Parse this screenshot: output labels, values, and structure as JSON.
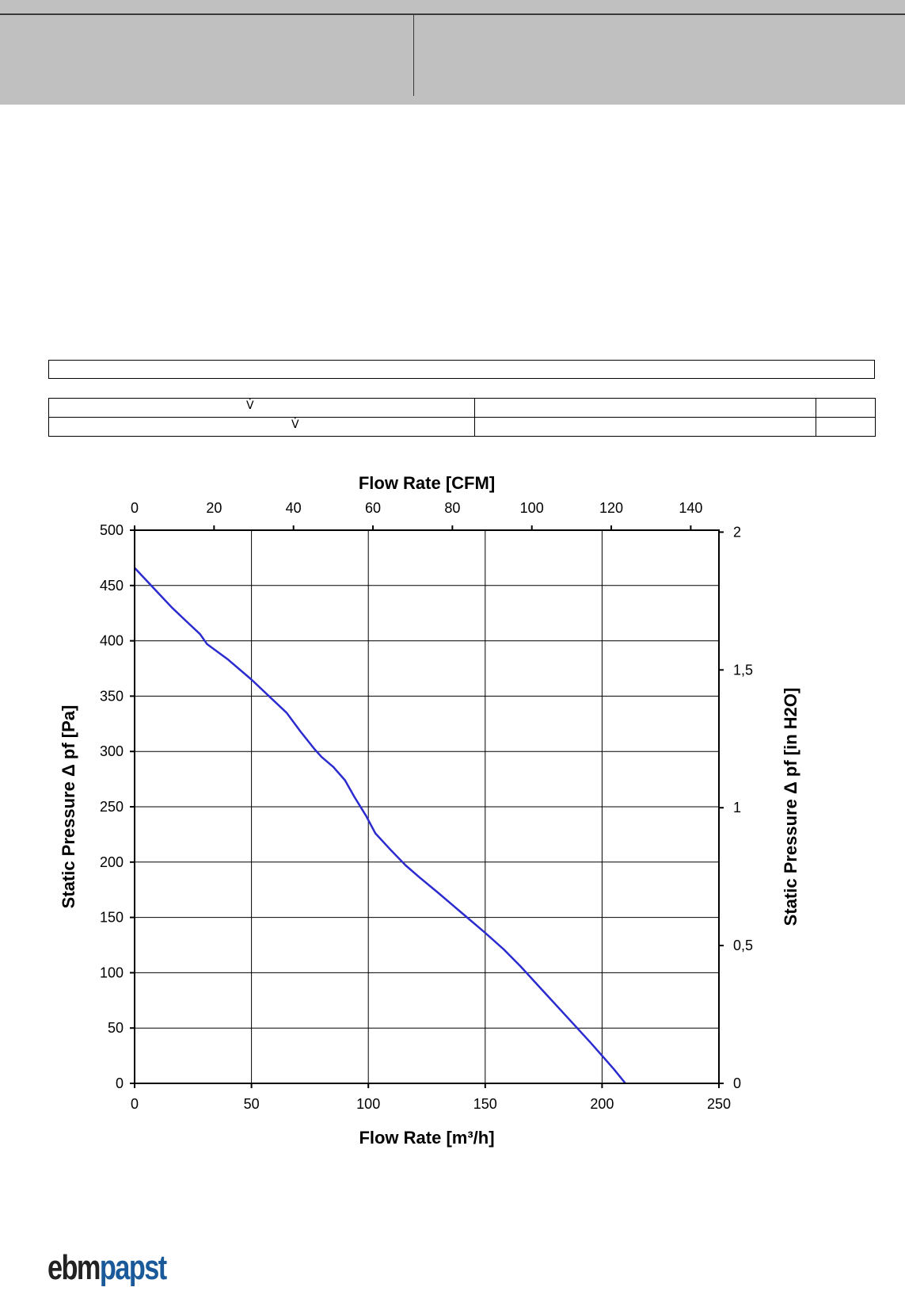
{
  "colors": {
    "header": "#c0c0c0",
    "curve": "#2b2bd0",
    "logo_dark": "#222222",
    "logo_blue": "#1a5a9a"
  },
  "table": {
    "row1_symbol": "V̇",
    "row2_symbol": "V̇"
  },
  "logo": {
    "ebm": "ebm",
    "papst": "papst"
  },
  "chart_data": {
    "type": "line",
    "xlabel": "Flow Rate [m³/h]",
    "x2label": "Flow Rate [CFM]",
    "ylabel": "Static Pressure Δ pf [Pa]",
    "y2label": "Static Pressure Δ pf [in H2O]",
    "xlim": [
      0,
      250
    ],
    "ylim": [
      0,
      500
    ],
    "x_ticks": [
      0,
      50,
      100,
      150,
      200,
      250
    ],
    "y_ticks": [
      0,
      50,
      100,
      150,
      200,
      250,
      300,
      350,
      400,
      450,
      500
    ],
    "x2lim": [
      0,
      147.1
    ],
    "x2_ticks": [
      "0",
      "20",
      "40",
      "60",
      "80",
      "100",
      "120",
      "140"
    ],
    "y2lim": [
      0,
      2.007
    ],
    "y2_ticks": [
      "0",
      "0,5",
      "1",
      "1,5",
      "2"
    ],
    "grid": true,
    "series": [
      {
        "x": [
          0,
          8,
          16,
          22,
          28,
          31,
          40,
          50,
          58,
          65,
          71,
          77,
          80,
          85,
          90,
          94,
          99,
          103,
          110,
          116,
          122,
          130,
          140,
          150,
          158,
          165,
          175,
          185,
          195,
          205,
          210
        ],
        "y": [
          466,
          448,
          430,
          418,
          406,
          397,
          383,
          365,
          349,
          335,
          318,
          302,
          295,
          286,
          274,
          259,
          242,
          226,
          210,
          197,
          186,
          172,
          154,
          136,
          121,
          106,
          83,
          60,
          37,
          13,
          0
        ]
      }
    ]
  }
}
